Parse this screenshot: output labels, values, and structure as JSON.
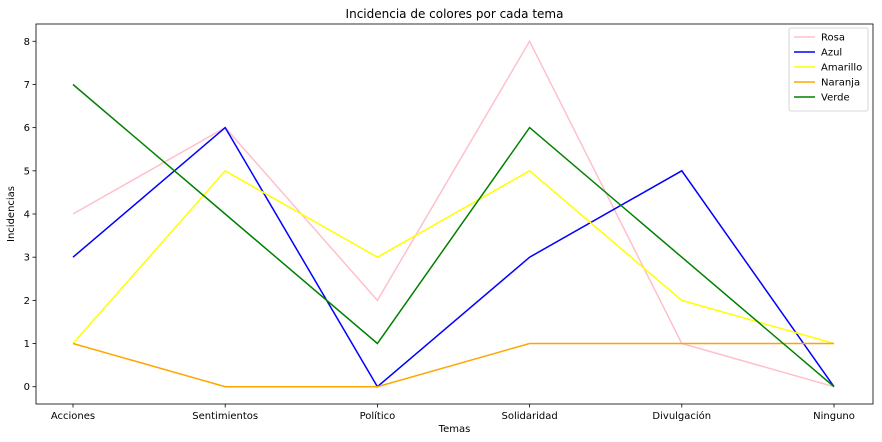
{
  "chart_data": {
    "type": "line",
    "title": "Incidencia de colores por cada tema",
    "xlabel": "Temas",
    "ylabel": "Incidencias",
    "categories": [
      "Acciones",
      "Sentimientos",
      "Político",
      "Solidaridad",
      "Divulgación",
      "Ninguno"
    ],
    "ylim": [
      -0.4,
      8.4
    ],
    "yticks": [
      0,
      1,
      2,
      3,
      4,
      5,
      6,
      7,
      8
    ],
    "grid": false,
    "legend_position": "top-right",
    "series": [
      {
        "name": "Rosa",
        "color": "#ffc0cb",
        "values": [
          4,
          6,
          2,
          8,
          1,
          0
        ]
      },
      {
        "name": "Azul",
        "color": "#0000ff",
        "values": [
          3,
          6,
          0,
          3,
          5,
          0
        ]
      },
      {
        "name": "Amarillo",
        "color": "#ffff00",
        "values": [
          1,
          5,
          3,
          5,
          2,
          1
        ]
      },
      {
        "name": "Naranja",
        "color": "#ffa500",
        "values": [
          1,
          0,
          0,
          1,
          1,
          1
        ]
      },
      {
        "name": "Verde",
        "color": "#008000",
        "values": [
          7,
          4,
          1,
          6,
          3,
          0
        ]
      }
    ]
  }
}
